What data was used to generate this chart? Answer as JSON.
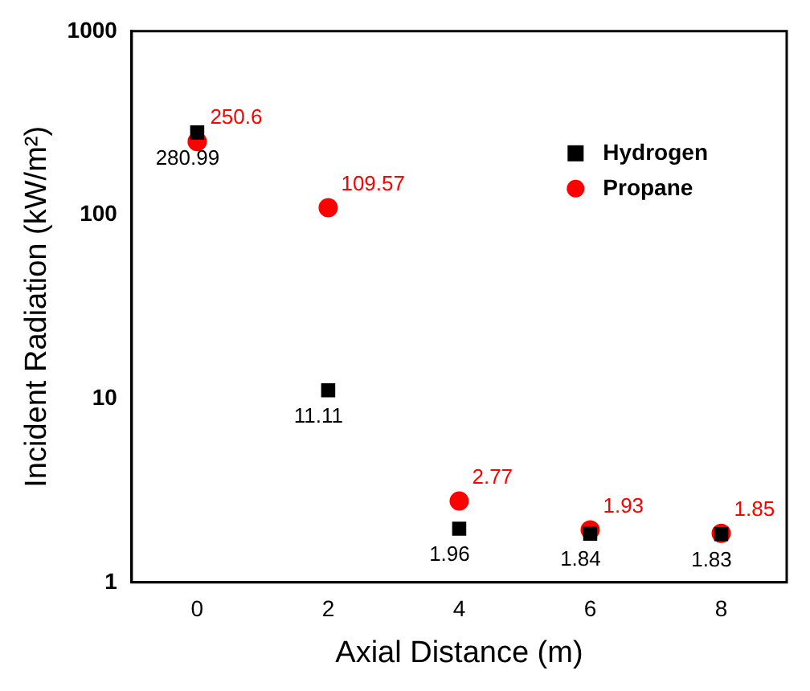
{
  "chart_data": {
    "type": "scatter",
    "xlabel": "Axial Distance (m)",
    "ylabel": "Incident Radiation (kW/m²)",
    "x": [
      0,
      2,
      4,
      6,
      8
    ],
    "series": [
      {
        "name": "Hydrogen",
        "color": "#000000",
        "marker": "square",
        "values": [
          280.99,
          11.11,
          1.96,
          1.84,
          1.83
        ]
      },
      {
        "name": "Propane",
        "color": "#ff0000",
        "marker": "circle",
        "values": [
          250.6,
          109.57,
          2.77,
          1.93,
          1.85
        ]
      }
    ],
    "xlim": [
      -1,
      9
    ],
    "xticks": [
      0,
      2,
      4,
      6,
      8
    ],
    "ylim": [
      1,
      1000
    ],
    "yticks": [
      1,
      10,
      100,
      1000
    ],
    "log": "y",
    "grid": false,
    "legend": "top right",
    "data_labels": true
  }
}
